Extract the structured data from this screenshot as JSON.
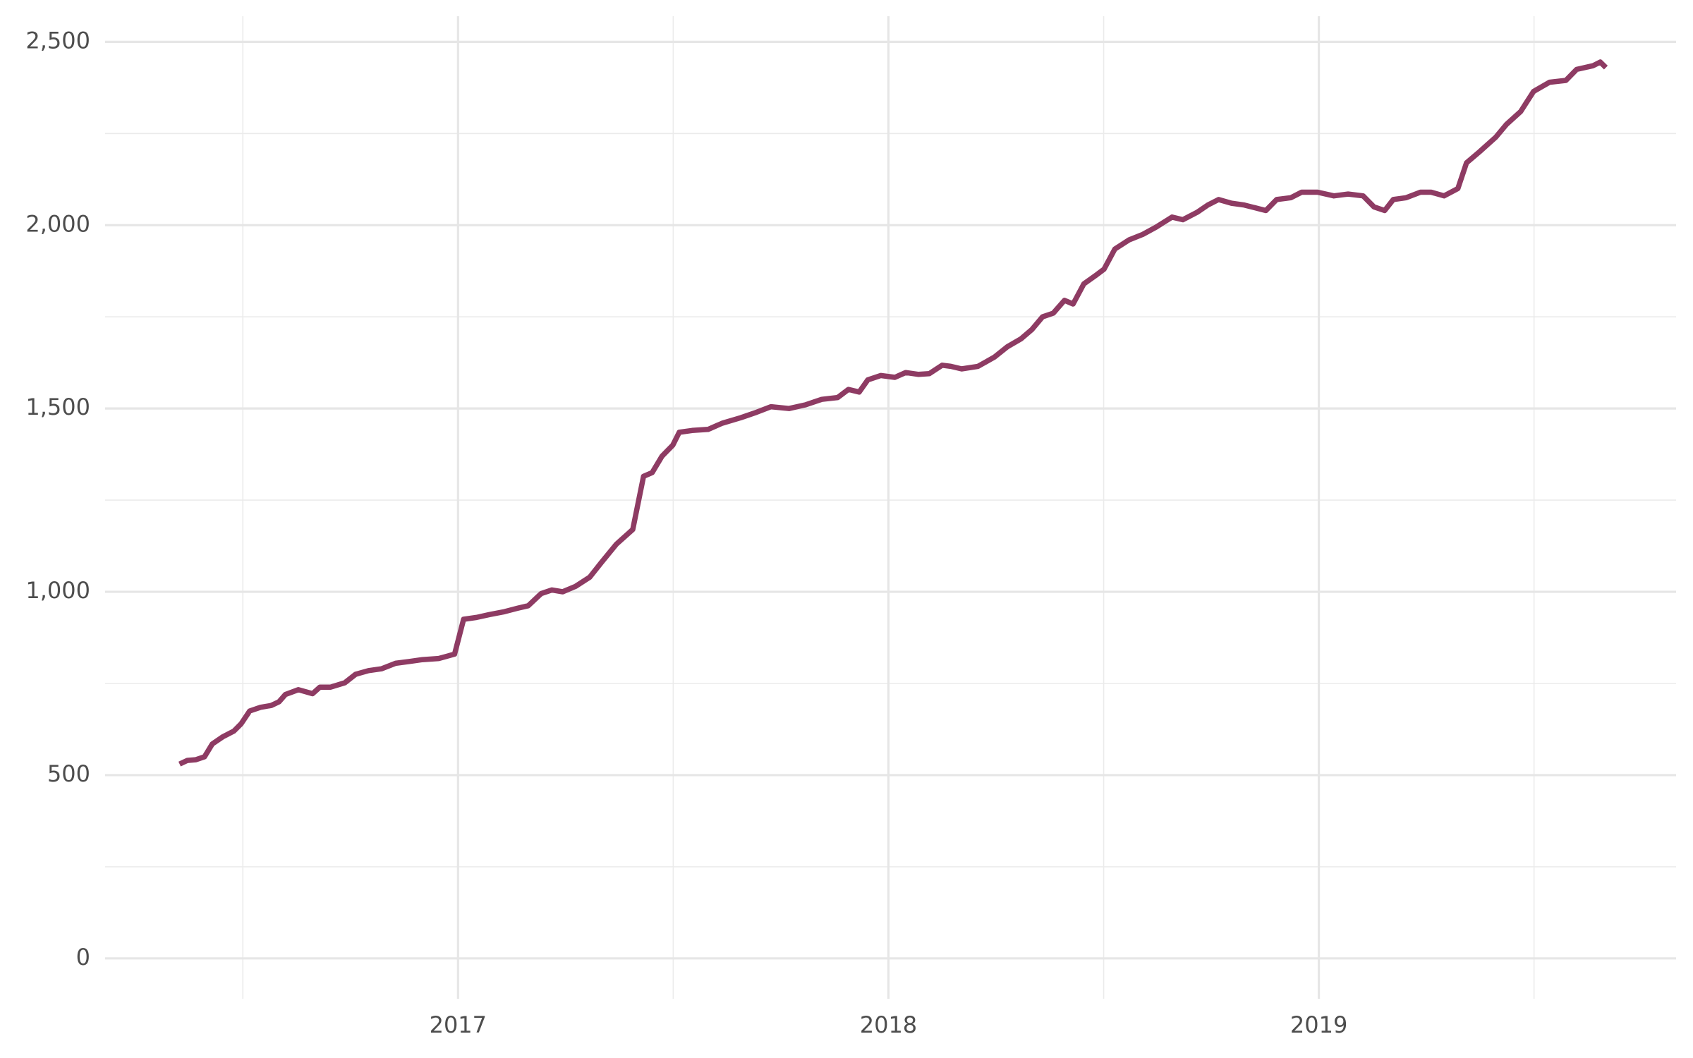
{
  "chart_data": {
    "type": "line",
    "x": [
      2016.353,
      2016.371,
      2016.391,
      2016.411,
      2016.429,
      2016.454,
      2016.479,
      2016.496,
      2016.516,
      2016.541,
      2016.566,
      2016.584,
      2016.599,
      2016.629,
      2016.662,
      2016.679,
      2016.704,
      2016.737,
      2016.762,
      2016.792,
      2016.822,
      2016.855,
      2016.887,
      2016.917,
      2016.955,
      2016.992,
      2017.013,
      2017.043,
      2017.073,
      2017.105,
      2017.138,
      2017.163,
      2017.193,
      2017.218,
      2017.243,
      2017.273,
      2017.306,
      2017.333,
      2017.368,
      2017.406,
      2017.431,
      2017.451,
      2017.474,
      2017.499,
      2017.514,
      2017.544,
      2017.581,
      2017.614,
      2017.657,
      2017.694,
      2017.727,
      2017.769,
      2017.807,
      2017.845,
      2017.882,
      2017.907,
      2017.932,
      2017.952,
      2017.982,
      2018.015,
      2018.04,
      2018.07,
      2018.095,
      2018.125,
      2018.145,
      2018.17,
      2018.208,
      2018.246,
      2018.276,
      2018.308,
      2018.333,
      2018.358,
      2018.383,
      2018.409,
      2018.429,
      2018.454,
      2018.484,
      2018.501,
      2018.526,
      2018.559,
      2018.591,
      2018.622,
      2018.659,
      2018.684,
      2018.717,
      2018.742,
      2018.767,
      2018.797,
      2018.827,
      2018.86,
      2018.877,
      2018.902,
      2018.935,
      2018.96,
      2018.997,
      2019.035,
      2019.068,
      2019.103,
      2019.128,
      2019.153,
      2019.173,
      2019.203,
      2019.236,
      2019.261,
      2019.291,
      2019.323,
      2019.343,
      2019.373,
      2019.411,
      2019.436,
      2019.469,
      2019.499,
      2019.536,
      2019.574,
      2019.599,
      2019.637,
      2019.654,
      2019.667
    ],
    "series": [
      {
        "color": "#8e3b63",
        "values": [
          530,
          540,
          542,
          550,
          585,
          605,
          620,
          640,
          675,
          685,
          690,
          700,
          720,
          733,
          722,
          740,
          740,
          752,
          775,
          785,
          790,
          805,
          810,
          815,
          818,
          830,
          925,
          930,
          938,
          945,
          955,
          962,
          995,
          1005,
          1000,
          1015,
          1040,
          1080,
          1130,
          1170,
          1315,
          1325,
          1370,
          1400,
          1435,
          1440,
          1443,
          1460,
          1475,
          1490,
          1505,
          1500,
          1510,
          1525,
          1530,
          1552,
          1545,
          1578,
          1590,
          1585,
          1598,
          1593,
          1595,
          1618,
          1615,
          1608,
          1615,
          1640,
          1668,
          1690,
          1715,
          1750,
          1760,
          1795,
          1785,
          1840,
          1865,
          1880,
          1935,
          1960,
          1975,
          1995,
          2022,
          2015,
          2035,
          2055,
          2070,
          2060,
          2055,
          2045,
          2040,
          2070,
          2075,
          2090,
          2090,
          2080,
          2085,
          2080,
          2050,
          2040,
          2070,
          2075,
          2090,
          2090,
          2080,
          2100,
          2170,
          2200,
          2240,
          2275,
          2310,
          2365,
          2390,
          2395,
          2425,
          2435,
          2445,
          2430
        ]
      }
    ],
    "xlim": [
      2016.18,
      2019.83
    ],
    "xticks": [
      2017,
      2018,
      2019
    ],
    "x_minor_ticks": [
      2016.5,
      2017.5,
      2018.5,
      2019.5
    ],
    "ylim": [
      -110,
      2570
    ],
    "yticks": [
      0,
      500,
      {
        "value": 1000,
        "label": "1,000"
      },
      {
        "value": 1500,
        "label": "1,500"
      },
      {
        "value": 2000,
        "label": "2,000"
      },
      {
        "value": 2500,
        "label": "2,500"
      }
    ],
    "y_minor_ticks": [
      250,
      750,
      1250,
      1750,
      2250
    ],
    "grid": true
  }
}
